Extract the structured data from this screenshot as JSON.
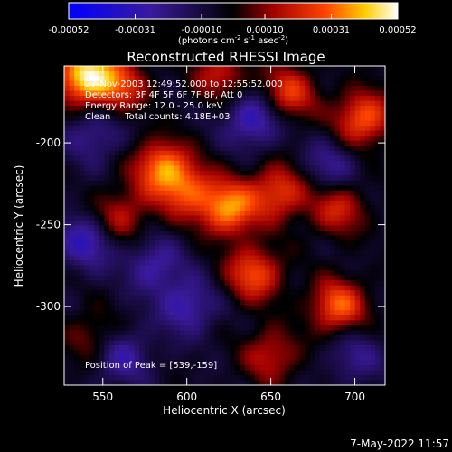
{
  "colorbar": {
    "tick_labels": [
      "-0.00052",
      "-0.00031",
      "-0.00010",
      "0.00010",
      "0.00031",
      "0.00052"
    ],
    "tick_values": [
      -0.00052,
      -0.00031,
      -0.0001,
      0.0001,
      0.00031,
      0.00052
    ],
    "range": [
      -0.00052,
      0.00052
    ],
    "units_line": [
      "(photons cm",
      "-2",
      " s",
      "-1",
      " asec",
      "-2",
      ")"
    ],
    "colors": {
      "negative_start": "#0000ff",
      "negative_mid": "#3a1a9c",
      "zero": "#000000",
      "positive_low": "#a00000",
      "positive_mid": "#ff4400",
      "positive_high": "#ffcc00",
      "positive_max": "#ffffff"
    }
  },
  "chart_data": {
    "type": "heatmap",
    "title": "Reconstructed RHESSI Image",
    "xlabel": "Heliocentric X (arcsec)",
    "ylabel": "Heliocentric Y (arcsec)",
    "xlim": [
      527,
      718
    ],
    "ylim": [
      -348,
      -153
    ],
    "x_ticks": [
      550,
      600,
      650,
      700
    ],
    "y_ticks": [
      -200,
      -250,
      -300
    ],
    "x_tick_labels": [
      "550",
      "600",
      "650",
      "700"
    ],
    "y_tick_labels": [
      "-200",
      "-250",
      "-300"
    ],
    "annotations": [
      "27-Nov-2003 12:49:52.000 to 12:55:52.000",
      "Detectors: 3F 4F 5F 6F 7F 8F, Att 0",
      "Energy Range: 12.0 - 25.0 keV",
      "Clean     Total counts: 4.18E+03",
      "Position of Peak = [539,-159]"
    ],
    "peak": {
      "x": 539,
      "y": -159
    },
    "hot_spots": [
      {
        "x": 539,
        "y": -159,
        "v": 1.0
      },
      {
        "x": 560,
        "y": -165,
        "v": 0.55
      },
      {
        "x": 620,
        "y": -158,
        "v": 0.45
      },
      {
        "x": 660,
        "y": -170,
        "v": 0.6
      },
      {
        "x": 705,
        "y": -185,
        "v": 0.7
      },
      {
        "x": 585,
        "y": -215,
        "v": 0.75
      },
      {
        "x": 600,
        "y": -230,
        "v": 0.55
      },
      {
        "x": 625,
        "y": -240,
        "v": 0.8
      },
      {
        "x": 560,
        "y": -245,
        "v": 0.45
      },
      {
        "x": 655,
        "y": -230,
        "v": 0.6
      },
      {
        "x": 690,
        "y": -240,
        "v": 0.5
      },
      {
        "x": 640,
        "y": -280,
        "v": 0.65
      },
      {
        "x": 690,
        "y": -300,
        "v": 0.7
      },
      {
        "x": 650,
        "y": -330,
        "v": 0.45
      },
      {
        "x": 545,
        "y": -320,
        "v": 0.35
      }
    ],
    "cold_spots": [
      {
        "x": 640,
        "y": -185,
        "v": -0.55
      },
      {
        "x": 540,
        "y": -260,
        "v": -0.5
      },
      {
        "x": 580,
        "y": -275,
        "v": -0.4
      },
      {
        "x": 600,
        "y": -300,
        "v": -0.45
      },
      {
        "x": 560,
        "y": -330,
        "v": -0.45
      },
      {
        "x": 685,
        "y": -215,
        "v": -0.35
      },
      {
        "x": 700,
        "y": -330,
        "v": -0.3
      },
      {
        "x": 545,
        "y": -195,
        "v": -0.35
      }
    ]
  },
  "footer": {
    "date": "7-May-2022 11:57"
  }
}
